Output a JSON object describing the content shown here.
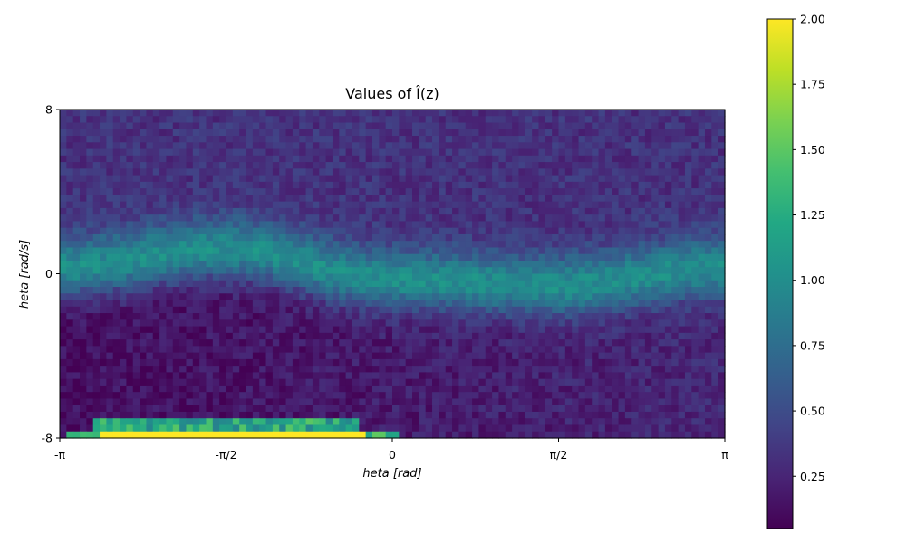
{
  "chart_data": {
    "type": "heatmap",
    "title": "Values of Î(z)",
    "xlabel": "heta [rad]",
    "ylabel": "heta [rad/s]",
    "x_range": [
      -3.14159,
      3.14159
    ],
    "y_range": [
      -8,
      8
    ],
    "x_ticks": [
      {
        "value": -3.14159,
        "label": "-π"
      },
      {
        "value": -1.5708,
        "label": "-π/2"
      },
      {
        "value": 0,
        "label": "0"
      },
      {
        "value": 1.5708,
        "label": "π/2"
      },
      {
        "value": 3.14159,
        "label": "π"
      }
    ],
    "y_ticks": [
      {
        "value": -8,
        "label": "-8"
      },
      {
        "value": 0,
        "label": "0"
      },
      {
        "value": 8,
        "label": "8"
      }
    ],
    "grid": false,
    "colormap": "viridis",
    "value_range": [
      0.05,
      2.0
    ],
    "colorbar_ticks": [
      {
        "value": 0.25,
        "label": "0.25"
      },
      {
        "value": 0.5,
        "label": "0.50"
      },
      {
        "value": 0.75,
        "label": "0.75"
      },
      {
        "value": 1.0,
        "label": "1.00"
      },
      {
        "value": 1.25,
        "label": "1.25"
      },
      {
        "value": 1.5,
        "label": "1.50"
      },
      {
        "value": 1.75,
        "label": "1.75"
      },
      {
        "value": 2.0,
        "label": "2.00"
      }
    ],
    "grid_resolution": {
      "cols": 100,
      "rows": 50
    },
    "ridge": [
      {
        "x": -3.14159,
        "y": 0.3
      },
      {
        "x": -1.5708,
        "y": 1.2
      },
      {
        "x": 0,
        "y": -0.3
      },
      {
        "x": 1.5708,
        "y": -0.6
      },
      {
        "x": 3.14159,
        "y": 0.3
      }
    ],
    "ridge_value": 1.0,
    "high_band": {
      "x": [
        -3.14,
        0.05
      ],
      "y": [
        -8,
        -7.6
      ],
      "value": 2.0
    }
  }
}
